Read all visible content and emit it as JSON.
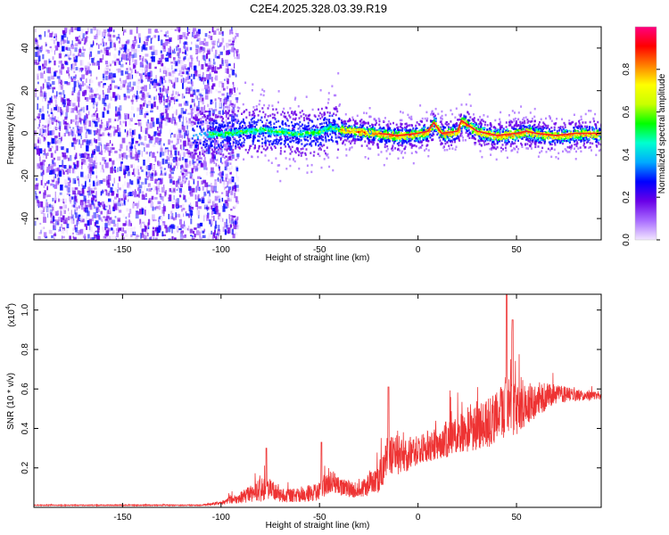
{
  "title": "C2E4.2025.328.03.39.R19",
  "chart_data": [
    {
      "type": "heatmap",
      "name": "spectrogram",
      "xlabel": "Height of straight line (km)",
      "ylabel": "Frequency (Hz)",
      "xlim": [
        -195,
        93
      ],
      "ylim": [
        -50,
        50
      ],
      "xticks": [
        -150,
        -100,
        -50,
        0,
        50
      ],
      "yticks": [
        -40,
        -20,
        0,
        20,
        40
      ],
      "noise_region_x": [
        -195,
        -100
      ],
      "signal_ridge": {
        "x": [
          -115,
          -100,
          -90,
          -80,
          -70,
          -60,
          -50,
          -45,
          -40,
          -30,
          -20,
          -10,
          0,
          5,
          8,
          12,
          20,
          22,
          30,
          40,
          50,
          55,
          60,
          70,
          80,
          93
        ],
        "freq": [
          0,
          0,
          1,
          2,
          1,
          0,
          1,
          3,
          2,
          1,
          0,
          -1,
          0,
          1,
          5,
          0,
          1,
          6,
          1,
          -1,
          0,
          1,
          0,
          -1,
          0,
          0
        ]
      },
      "colorbar": {
        "label": "Normalized spectral amplitude",
        "ticks": [
          0.0,
          0.2,
          0.4,
          0.6,
          0.8
        ],
        "range": [
          0,
          1
        ],
        "colors": [
          "#f2e6ff",
          "#a86bff",
          "#6a00e8",
          "#0000ff",
          "#00aaff",
          "#00ffd0",
          "#00ff00",
          "#c8ff00",
          "#ffff00",
          "#ff8000",
          "#ff0000",
          "#ff0080"
        ]
      }
    },
    {
      "type": "line",
      "name": "snr",
      "xlabel": "Height of straight line (km)",
      "ylabel": "SNR (10 * v/v)",
      "scale_label": "(x10",
      "scale_exp": "4",
      "scale_close": ")",
      "xlim": [
        -195,
        93
      ],
      "ylim": [
        0,
        1.08
      ],
      "xticks": [
        -150,
        -100,
        -50,
        0,
        50
      ],
      "yticks": [
        0.2,
        0.4,
        0.6,
        0.8,
        1.0
      ],
      "color": "#ee3333",
      "envelope": {
        "x": [
          -195,
          -110,
          -100,
          -90,
          -80,
          -75,
          -70,
          -60,
          -50,
          -45,
          -40,
          -30,
          -20,
          -15,
          -10,
          0,
          10,
          20,
          30,
          40,
          45,
          50,
          60,
          70,
          80,
          93
        ],
        "base": [
          0.01,
          0.01,
          0.02,
          0.04,
          0.07,
          0.08,
          0.05,
          0.05,
          0.07,
          0.12,
          0.09,
          0.07,
          0.12,
          0.25,
          0.22,
          0.27,
          0.3,
          0.34,
          0.37,
          0.4,
          0.48,
          0.45,
          0.52,
          0.56,
          0.56,
          0.56
        ],
        "spread": [
          0.005,
          0.005,
          0.02,
          0.06,
          0.12,
          0.1,
          0.07,
          0.07,
          0.1,
          0.13,
          0.09,
          0.08,
          0.15,
          0.22,
          0.18,
          0.16,
          0.17,
          0.2,
          0.22,
          0.28,
          0.3,
          0.26,
          0.18,
          0.1,
          0.06,
          0.04
        ]
      },
      "peaks": [
        {
          "x": -77,
          "y": 0.3
        },
        {
          "x": -49,
          "y": 0.33
        },
        {
          "x": -15,
          "y": 0.61
        },
        {
          "x": 45,
          "y": 1.08
        },
        {
          "x": 48,
          "y": 0.95
        }
      ]
    }
  ]
}
